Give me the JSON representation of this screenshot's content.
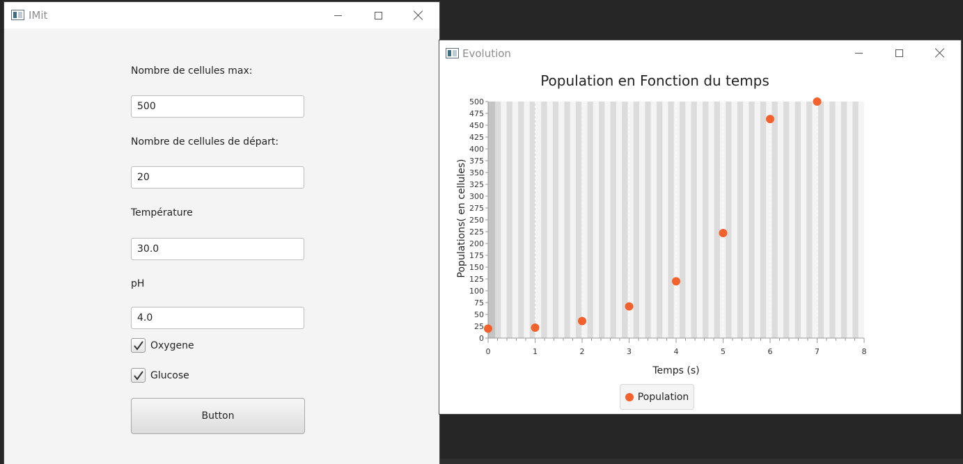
{
  "window1": {
    "title": "IMit",
    "fields": [
      {
        "label": "Nombre de cellules max:",
        "value": "500"
      },
      {
        "label": "Nombre de cellules de départ:",
        "value": "20"
      },
      {
        "label": "Température",
        "value": "30.0"
      },
      {
        "label": "pH",
        "value": "4.0"
      }
    ],
    "checkboxes": [
      {
        "label": "Oxygene",
        "checked": true
      },
      {
        "label": "Glucose",
        "checked": true
      }
    ],
    "button_label": "Button"
  },
  "window2": {
    "title": "Evolution",
    "legend_label": "Population"
  },
  "colors": {
    "series": "#f3622d",
    "plot_bg": "#f4f4f4",
    "stripe": "#dcdcdc"
  },
  "chart_data": {
    "type": "scatter",
    "title": "Population en Fonction du temps",
    "xlabel": "Temps (s)",
    "ylabel": "Populations( en cellules)",
    "xlim": [
      0,
      8
    ],
    "ylim": [
      0,
      500
    ],
    "x_ticks": [
      0,
      1,
      2,
      3,
      4,
      5,
      6,
      7,
      8
    ],
    "y_ticks": [
      0,
      25,
      50,
      75,
      100,
      125,
      150,
      175,
      200,
      225,
      250,
      275,
      300,
      325,
      350,
      375,
      400,
      425,
      450,
      475,
      500
    ],
    "series": [
      {
        "name": "Population",
        "x": [
          0,
          1,
          2,
          3,
          4,
          5,
          6,
          7
        ],
        "y": [
          20,
          22,
          36,
          67,
          120,
          222,
          463,
          500
        ]
      }
    ],
    "legend_position": "bottom",
    "grid": true
  }
}
